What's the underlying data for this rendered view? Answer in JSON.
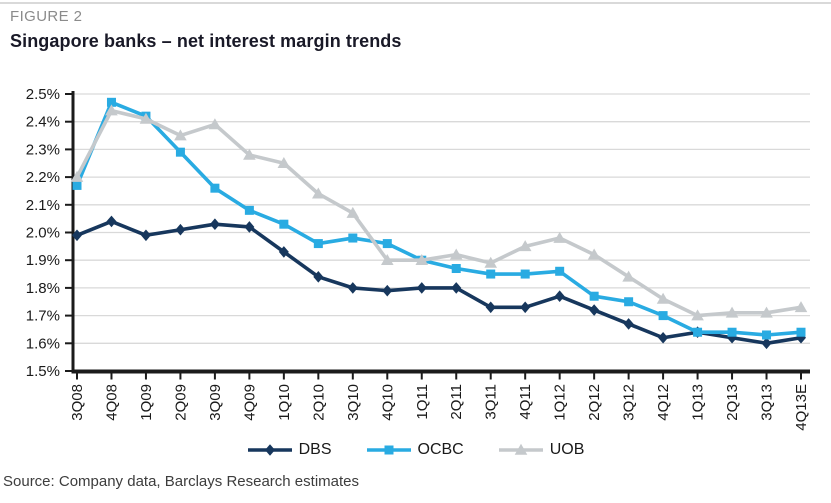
{
  "figure": {
    "label": "FIGURE 2",
    "title": "Singapore banks – net interest margin trends"
  },
  "source": "Source: Company data, Barclays Research estimates",
  "style": {
    "grid_color": "#d9d9d9",
    "axis_color": "#1b1b1b",
    "tick_text_color": "#1a1a1a",
    "figure_label_color": "#8b8b8b",
    "title_color": "#191927",
    "source_color": "#3d3d3d"
  },
  "chart_data": {
    "type": "line",
    "title": "Singapore banks – net interest margin trends",
    "xlabel": "",
    "ylabel": "",
    "ylim": [
      1.5,
      2.5
    ],
    "ytick_step": 0.1,
    "ytick_labels": [
      "2.5%",
      "2.4%",
      "2.3%",
      "2.2%",
      "2.1%",
      "2.0%",
      "1.9%",
      "1.8%",
      "1.7%",
      "1.6%",
      "1.5%"
    ],
    "grid": "horizontal",
    "legend_position": "bottom",
    "categories": [
      "3Q08",
      "4Q08",
      "1Q09",
      "2Q09",
      "3Q09",
      "4Q09",
      "1Q10",
      "2Q10",
      "3Q10",
      "4Q10",
      "1Q11",
      "2Q11",
      "3Q11",
      "4Q11",
      "1Q12",
      "2Q12",
      "3Q12",
      "4Q12",
      "1Q13",
      "2Q13",
      "3Q13",
      "4Q13E"
    ],
    "series": [
      {
        "name": "DBS",
        "color": "#17375d",
        "marker": "diamond",
        "values": [
          1.99,
          2.04,
          1.99,
          2.01,
          2.03,
          2.02,
          1.93,
          1.84,
          1.8,
          1.79,
          1.8,
          1.8,
          1.73,
          1.73,
          1.77,
          1.72,
          1.67,
          1.62,
          1.64,
          1.62,
          1.6,
          1.62
        ]
      },
      {
        "name": "OCBC",
        "color": "#29abe2",
        "marker": "square",
        "values": [
          2.17,
          2.47,
          2.42,
          2.29,
          2.16,
          2.08,
          2.03,
          1.96,
          1.98,
          1.96,
          1.9,
          1.87,
          1.85,
          1.85,
          1.86,
          1.77,
          1.75,
          1.7,
          1.64,
          1.64,
          1.63,
          1.64
        ]
      },
      {
        "name": "UOB",
        "color": "#c5c9cc",
        "marker": "triangle",
        "values": [
          2.2,
          2.44,
          2.41,
          2.35,
          2.39,
          2.28,
          2.25,
          2.14,
          2.07,
          1.9,
          1.9,
          1.92,
          1.89,
          1.95,
          1.98,
          1.92,
          1.84,
          1.76,
          1.7,
          1.71,
          1.71,
          1.73
        ]
      }
    ]
  }
}
